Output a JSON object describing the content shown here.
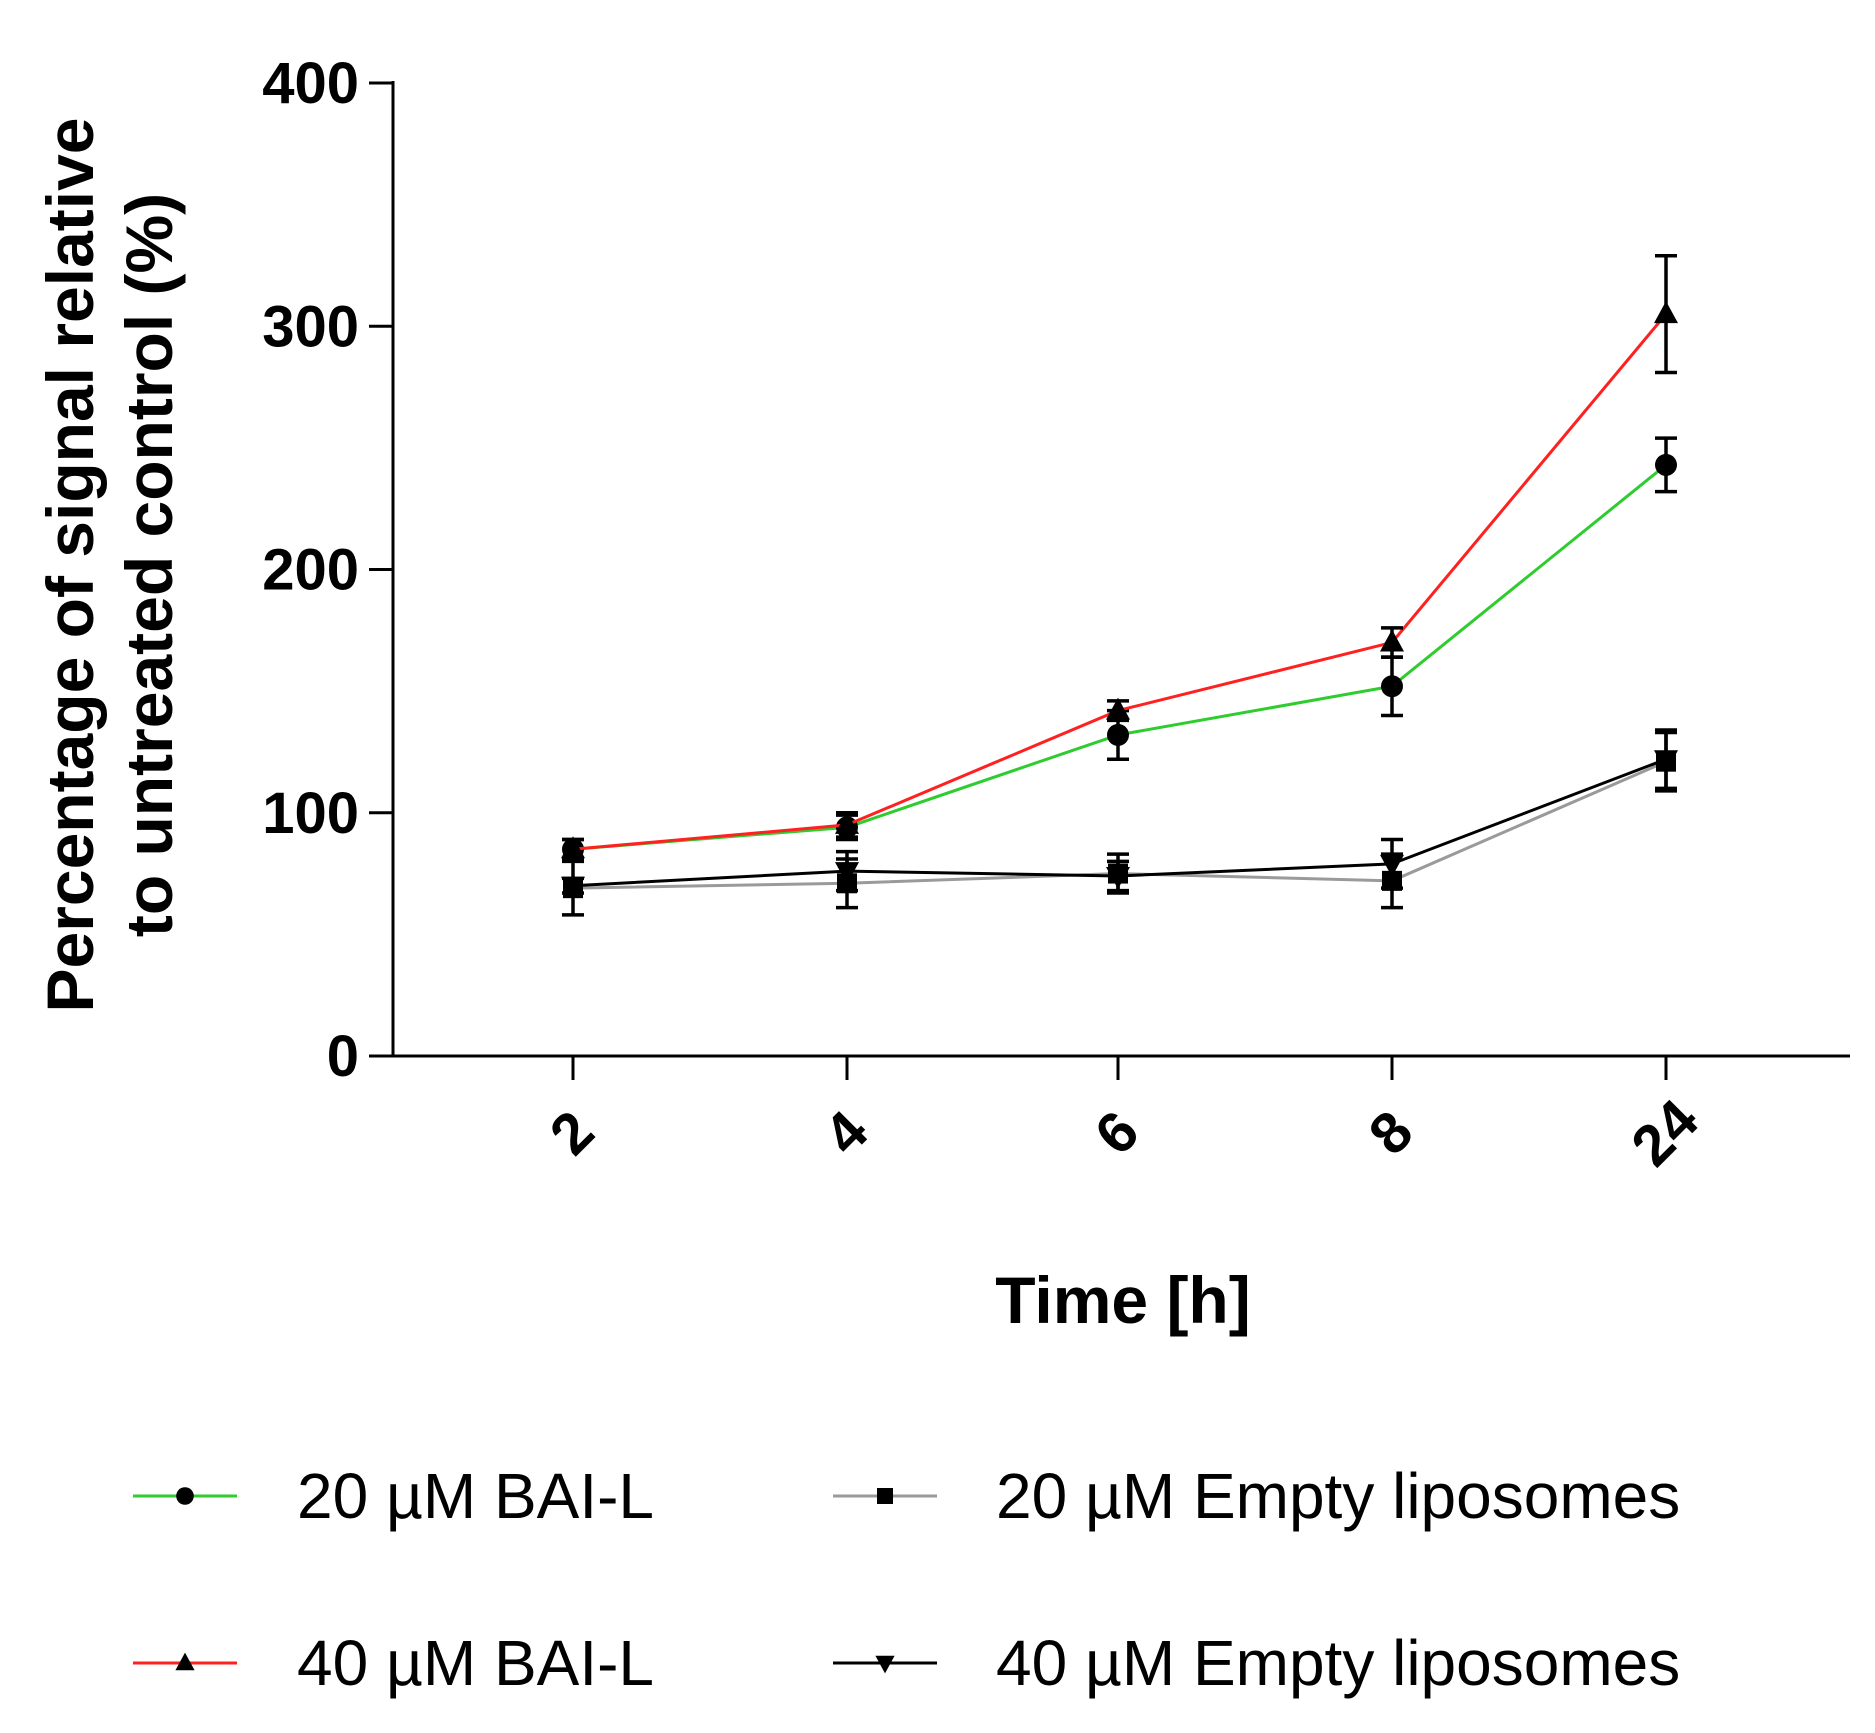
{
  "chart_data": {
    "type": "line",
    "title": "",
    "xlabel": "Time [h]",
    "ylabel_lines": [
      "Percentage of signal relative",
      "to untreated control (%)"
    ],
    "categories": [
      "2",
      "4",
      "6",
      "8",
      "24"
    ],
    "ylim": [
      0,
      400
    ],
    "yticks": [
      0,
      100,
      200,
      300,
      400
    ],
    "grid": false,
    "legend_position": "bottom",
    "series": [
      {
        "name": "20 µM BAI-L",
        "color": "#2ecc2e",
        "marker": "circle",
        "values": [
          85,
          94,
          132,
          152,
          243
        ],
        "errors": [
          4,
          5,
          10,
          12,
          11
        ]
      },
      {
        "name": "40 µM BAI-L",
        "color": "#ff2020",
        "marker": "triangle-up",
        "values": [
          85,
          95,
          142,
          170,
          305
        ],
        "errors": [
          4,
          5,
          4,
          6,
          24
        ]
      },
      {
        "name": "20 µM Empty liposomes",
        "color": "#9a9a9a",
        "marker": "square",
        "values": [
          69,
          71,
          75,
          72,
          121
        ],
        "errors": [
          11,
          10,
          8,
          11,
          12
        ]
      },
      {
        "name": "40 µM Empty liposomes",
        "color": "#000000",
        "marker": "triangle-down",
        "values": [
          70,
          76,
          74,
          79,
          122
        ],
        "errors": [
          3,
          8,
          6,
          10,
          12
        ]
      }
    ]
  }
}
